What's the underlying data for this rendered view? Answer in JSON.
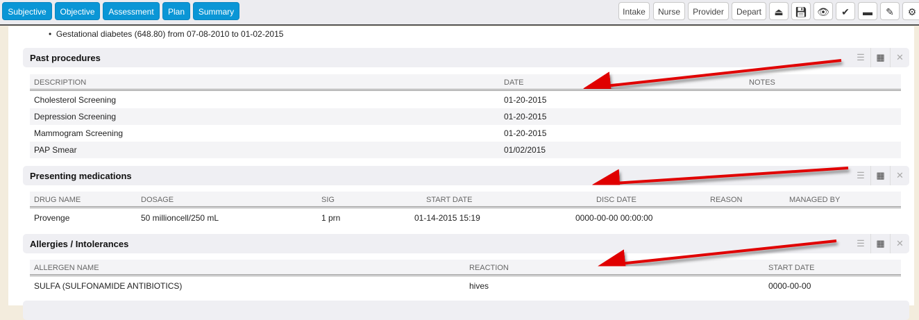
{
  "toolbar": {
    "left_tabs": [
      "Subjective",
      "Objective",
      "Assessment",
      "Plan",
      "Summary"
    ],
    "right_buttons": [
      "Intake",
      "Nurse",
      "Provider",
      "Depart"
    ],
    "icon_buttons": [
      "eject-icon",
      "save-icon",
      "eye-icon",
      "check-icon",
      "archive-icon",
      "edit-icon",
      "gears-icon"
    ]
  },
  "bullet": "Gestational diabetes (648.80) from 07-08-2010 to 01-02-2015",
  "past_procedures": {
    "title": "Past procedures",
    "columns": [
      "DESCRIPTION",
      "DATE",
      "NOTES"
    ],
    "rows": [
      [
        "Cholesterol Screening",
        "01-20-2015",
        ""
      ],
      [
        "Depression Screening",
        "01-20-2015",
        ""
      ],
      [
        "Mammogram Screening",
        "01-20-2015",
        ""
      ],
      [
        "PAP Smear",
        "01/02/2015",
        ""
      ]
    ]
  },
  "medications": {
    "title": "Presenting medications",
    "columns": [
      "DRUG NAME",
      "DOSAGE",
      "SIG",
      "START DATE",
      "DISC DATE",
      "REASON",
      "MANAGED BY"
    ],
    "rows": [
      [
        "Provenge",
        "50 millioncell/250 mL",
        "1 prn",
        "01-14-2015 15:19",
        "0000-00-00 00:00:00",
        "",
        ""
      ]
    ]
  },
  "allergies": {
    "title": "Allergies / Intolerances",
    "columns": [
      "ALLERGEN NAME",
      "REACTION",
      "START DATE"
    ],
    "rows": [
      [
        "SULFA (SULFONAMIDE ANTIBIOTICS)",
        "hives",
        "0000-00-00"
      ]
    ]
  },
  "colors": {
    "tab_blue": "#0a96d6",
    "annotation_arrow": "#e00000"
  }
}
